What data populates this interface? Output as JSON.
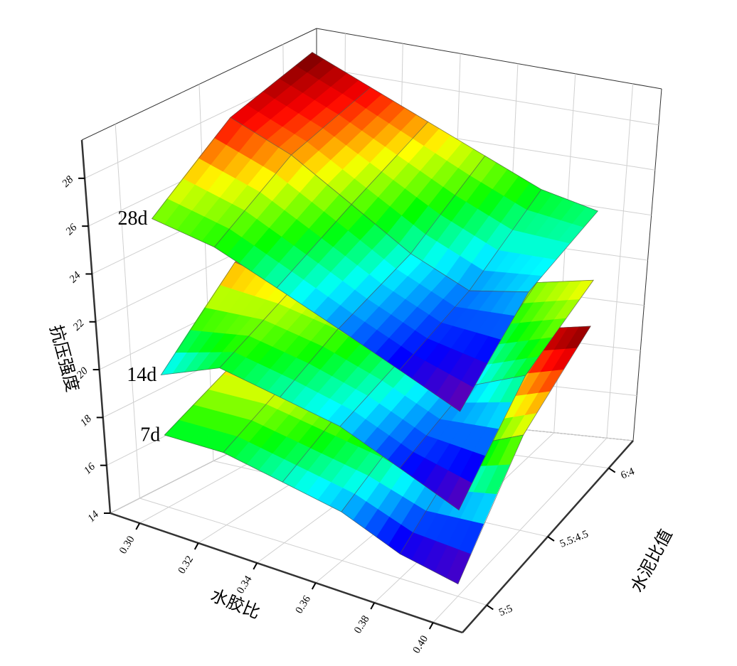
{
  "chart_data": {
    "type": "surface3d",
    "x_label": "水胶比",
    "y_label": "水泥比值",
    "z_label": "抗压强度",
    "x": [
      0.3,
      0.32,
      0.34,
      0.36,
      0.38,
      0.4
    ],
    "xlim": [
      0.29,
      0.41
    ],
    "xticks": [
      {
        "value": 0.3,
        "label": "0.30"
      },
      {
        "value": 0.32,
        "label": "0.32"
      },
      {
        "value": 0.34,
        "label": "0.34"
      },
      {
        "value": 0.36,
        "label": "0.36"
      },
      {
        "value": 0.38,
        "label": "0.38"
      },
      {
        "value": 0.4,
        "label": "0.40"
      }
    ],
    "y_categories": [
      "5:5",
      "5.5:4.5",
      "6:4"
    ],
    "zlim": [
      14,
      29.6
    ],
    "zticks": [
      14,
      16,
      18,
      20,
      22,
      24,
      26,
      28
    ],
    "grid": true,
    "colormap": "rainbow",
    "series": [
      {
        "name": "7d",
        "values": [
          [
            17,
            17,
            16.5,
            16,
            15,
            14.5
          ],
          [
            18.5,
            18.5,
            18,
            17.5,
            17,
            18
          ],
          [
            19.5,
            19.5,
            19,
            19,
            19.5,
            20
          ]
        ]
      },
      {
        "name": "14d",
        "values": [
          [
            19.5,
            20.5,
            20,
            19.5,
            18.5,
            17.5
          ],
          [
            22.5,
            22,
            21.5,
            20.5,
            19.5,
            20.5
          ],
          [
            24,
            23.5,
            22.5,
            22,
            21.5,
            22
          ]
        ]
      },
      {
        "name": "28d",
        "values": [
          [
            26,
            25.5,
            24.5,
            23.5,
            22.5,
            21.5
          ],
          [
            28.5,
            27.5,
            26,
            24.5,
            23.5,
            24
          ],
          [
            29.5,
            28.5,
            27.5,
            26.5,
            25.5,
            25
          ]
        ]
      }
    ]
  }
}
